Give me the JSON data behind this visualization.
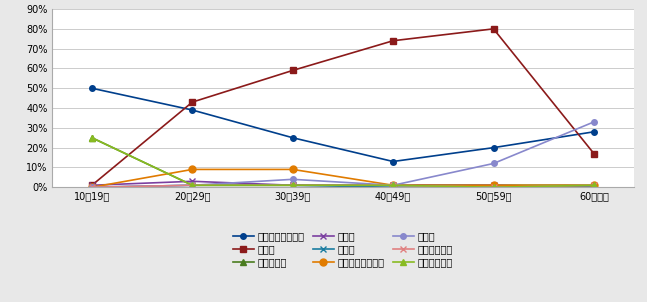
{
  "categories": [
    "10〜19歳",
    "20〜29歳",
    "30〜39歳",
    "40〜49歳",
    "50〜59歳",
    "60歳以上"
  ],
  "series": [
    {
      "label": "就職・転職・転業",
      "values": [
        50,
        39,
        25,
        13,
        20,
        28
      ],
      "color": "#003f8c",
      "marker": "o",
      "linestyle": "-",
      "markersize": 4
    },
    {
      "label": "転　動",
      "values": [
        1,
        43,
        59,
        74,
        80,
        17
      ],
      "color": "#8b1a1a",
      "marker": "s",
      "linestyle": "-",
      "markersize": 4
    },
    {
      "label": "退職・廃業",
      "values": [
        25,
        1,
        1,
        1,
        1,
        1
      ],
      "color": "#4a7c1f",
      "marker": "^",
      "linestyle": "-",
      "markersize": 5
    },
    {
      "label": "就　学",
      "values": [
        1,
        3,
        1,
        1,
        1,
        0
      ],
      "color": "#7b3fa0",
      "marker": "x",
      "linestyle": "-",
      "markersize": 4
    },
    {
      "label": "卒　業",
      "values": [
        0,
        1,
        1,
        0,
        0,
        0
      ],
      "color": "#1a7ca0",
      "marker": "x",
      "linestyle": "-",
      "markersize": 4
    },
    {
      "label": "結婚・離婚・縁組",
      "values": [
        0,
        9,
        9,
        1,
        1,
        1
      ],
      "color": "#e07b00",
      "marker": "o",
      "linestyle": "-",
      "markersize": 5
    },
    {
      "label": "住　宅",
      "values": [
        0,
        1,
        4,
        1,
        12,
        33
      ],
      "color": "#8888cc",
      "marker": "o",
      "linestyle": "-",
      "markersize": 4
    },
    {
      "label": "交通の利便性",
      "values": [
        0,
        1,
        1,
        1,
        0,
        1
      ],
      "color": "#e08080",
      "marker": "x",
      "linestyle": "-",
      "markersize": 4
    },
    {
      "label": "生活の利便性",
      "values": [
        25,
        1,
        1,
        1,
        0,
        1
      ],
      "color": "#88bb22",
      "marker": "^",
      "linestyle": "-",
      "markersize": 5
    }
  ],
  "ylim": [
    0,
    90
  ],
  "yticks": [
    0,
    10,
    20,
    30,
    40,
    50,
    60,
    70,
    80,
    90
  ],
  "yticklabels": [
    "0%",
    "10%",
    "20%",
    "30%",
    "40%",
    "50%",
    "60%",
    "70%",
    "80%",
    "90%"
  ],
  "background_color": "#e8e8e8",
  "plot_bg_color": "#ffffff",
  "grid_color": "#cccccc",
  "legend_ncol": 3,
  "figsize": [
    6.47,
    3.02
  ],
  "dpi": 100
}
